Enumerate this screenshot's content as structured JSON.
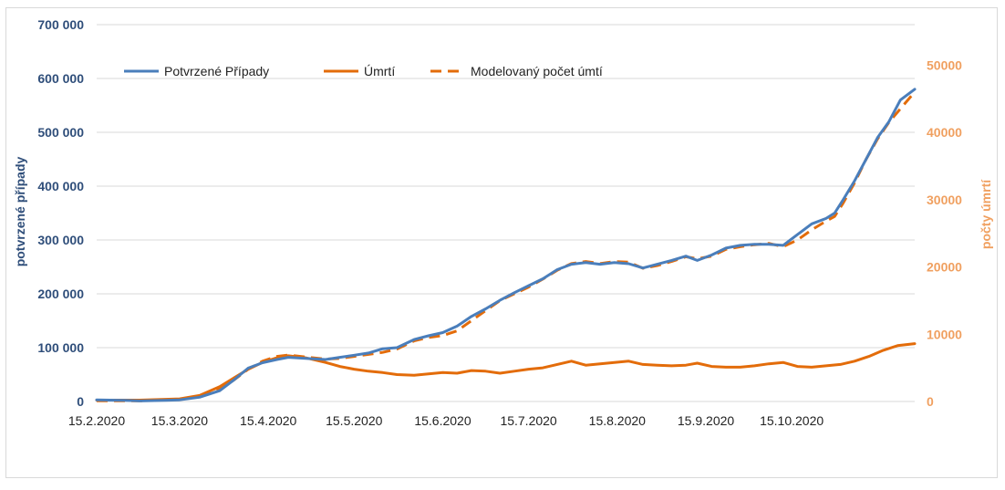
{
  "chart_data": {
    "type": "line",
    "title": "",
    "ylabel_left": "potvrzené případy",
    "ylabel_right": "počty úmrtí",
    "xlabel": "",
    "x_ticks": [
      "15.2.2020",
      "15.3.2020",
      "15.4.2020",
      "15.5.2020",
      "15.6.2020",
      "15.7.2020",
      "15.8.2020",
      "15.9.2020",
      "15.10.2020"
    ],
    "x_tick_dates": [
      "2020-02-15",
      "2020-03-15",
      "2020-04-15",
      "2020-05-15",
      "2020-06-15",
      "2020-07-15",
      "2020-08-15",
      "2020-09-15",
      "2020-10-15"
    ],
    "x_range": [
      "2020-02-15",
      "2020-11-27"
    ],
    "y_left_ticks": [
      "0",
      "100 000",
      "200 000",
      "300 000",
      "400 000",
      "500 000",
      "600 000",
      "700 000"
    ],
    "y_left_range": [
      0,
      700000
    ],
    "y_right_ticks": [
      "0",
      "10000",
      "20000",
      "30000",
      "40000",
      "50000"
    ],
    "y_right_range": [
      0,
      56000
    ],
    "legend_position": "top",
    "grid": "horizontal",
    "colors": {
      "confirmed": "#4a7ebb",
      "deaths": "#e36c0a",
      "left_axis": "#2f4e7a",
      "right_axis": "#f0a060",
      "grid": "#d9d9d9"
    },
    "series": [
      {
        "name": "Potvrzené Případy",
        "axis": "left",
        "style": "solid",
        "points": [
          [
            "2020-02-15",
            3000
          ],
          [
            "2020-02-25",
            2000
          ],
          [
            "2020-03-01",
            1000
          ],
          [
            "2020-03-10",
            2000
          ],
          [
            "2020-03-15",
            3000
          ],
          [
            "2020-03-22",
            8000
          ],
          [
            "2020-03-29",
            20000
          ],
          [
            "2020-04-03",
            40000
          ],
          [
            "2020-04-08",
            62000
          ],
          [
            "2020-04-13",
            72000
          ],
          [
            "2020-04-18",
            78000
          ],
          [
            "2020-04-22",
            82000
          ],
          [
            "2020-04-28",
            80000
          ],
          [
            "2020-05-05",
            78000
          ],
          [
            "2020-05-10",
            82000
          ],
          [
            "2020-05-15",
            86000
          ],
          [
            "2020-05-20",
            90000
          ],
          [
            "2020-05-25",
            98000
          ],
          [
            "2020-05-30",
            100000
          ],
          [
            "2020-06-05",
            115000
          ],
          [
            "2020-06-10",
            122000
          ],
          [
            "2020-06-15",
            128000
          ],
          [
            "2020-06-20",
            140000
          ],
          [
            "2020-06-25",
            158000
          ],
          [
            "2020-06-30",
            172000
          ],
          [
            "2020-07-05",
            188000
          ],
          [
            "2020-07-10",
            202000
          ],
          [
            "2020-07-15",
            215000
          ],
          [
            "2020-07-20",
            228000
          ],
          [
            "2020-07-25",
            245000
          ],
          [
            "2020-07-30",
            255000
          ],
          [
            "2020-08-04",
            258000
          ],
          [
            "2020-08-09",
            255000
          ],
          [
            "2020-08-14",
            258000
          ],
          [
            "2020-08-19",
            256000
          ],
          [
            "2020-08-24",
            248000
          ],
          [
            "2020-08-29",
            255000
          ],
          [
            "2020-09-03",
            262000
          ],
          [
            "2020-09-08",
            270000
          ],
          [
            "2020-09-12",
            262000
          ],
          [
            "2020-09-17",
            272000
          ],
          [
            "2020-09-22",
            285000
          ],
          [
            "2020-09-27",
            290000
          ],
          [
            "2020-10-02",
            292000
          ],
          [
            "2020-10-07",
            292000
          ],
          [
            "2020-10-12",
            290000
          ],
          [
            "2020-10-17",
            310000
          ],
          [
            "2020-10-22",
            330000
          ],
          [
            "2020-10-27",
            340000
          ],
          [
            "2020-10-30",
            350000
          ],
          [
            "2020-11-02",
            375000
          ],
          [
            "2020-11-06",
            410000
          ],
          [
            "2020-11-10",
            450000
          ],
          [
            "2020-11-14",
            490000
          ],
          [
            "2020-11-18",
            520000
          ],
          [
            "2020-11-22",
            560000
          ],
          [
            "2020-11-27",
            580000
          ]
        ]
      },
      {
        "name": "Úmrtí",
        "axis": "right",
        "style": "solid",
        "points": [
          [
            "2020-02-15",
            200
          ],
          [
            "2020-03-01",
            200
          ],
          [
            "2020-03-15",
            400
          ],
          [
            "2020-03-22",
            900
          ],
          [
            "2020-03-29",
            2200
          ],
          [
            "2020-04-03",
            3500
          ],
          [
            "2020-04-08",
            4800
          ],
          [
            "2020-04-13",
            5800
          ],
          [
            "2020-04-18",
            6500
          ],
          [
            "2020-04-22",
            6800
          ],
          [
            "2020-04-28",
            6500
          ],
          [
            "2020-05-05",
            5800
          ],
          [
            "2020-05-10",
            5200
          ],
          [
            "2020-05-15",
            4800
          ],
          [
            "2020-05-20",
            4500
          ],
          [
            "2020-05-25",
            4300
          ],
          [
            "2020-05-30",
            4000
          ],
          [
            "2020-06-05",
            3900
          ],
          [
            "2020-06-10",
            4100
          ],
          [
            "2020-06-15",
            4300
          ],
          [
            "2020-06-20",
            4200
          ],
          [
            "2020-06-25",
            4600
          ],
          [
            "2020-06-30",
            4500
          ],
          [
            "2020-07-05",
            4200
          ],
          [
            "2020-07-10",
            4500
          ],
          [
            "2020-07-15",
            4800
          ],
          [
            "2020-07-20",
            5000
          ],
          [
            "2020-07-25",
            5500
          ],
          [
            "2020-07-30",
            6000
          ],
          [
            "2020-08-04",
            5400
          ],
          [
            "2020-08-09",
            5600
          ],
          [
            "2020-08-14",
            5800
          ],
          [
            "2020-08-19",
            6000
          ],
          [
            "2020-08-24",
            5500
          ],
          [
            "2020-08-29",
            5400
          ],
          [
            "2020-09-03",
            5300
          ],
          [
            "2020-09-08",
            5400
          ],
          [
            "2020-09-12",
            5700
          ],
          [
            "2020-09-17",
            5200
          ],
          [
            "2020-09-22",
            5100
          ],
          [
            "2020-09-27",
            5100
          ],
          [
            "2020-10-02",
            5300
          ],
          [
            "2020-10-07",
            5600
          ],
          [
            "2020-10-12",
            5800
          ],
          [
            "2020-10-17",
            5200
          ],
          [
            "2020-10-22",
            5100
          ],
          [
            "2020-10-27",
            5300
          ],
          [
            "2020-11-01",
            5500
          ],
          [
            "2020-11-06",
            6000
          ],
          [
            "2020-11-11",
            6700
          ],
          [
            "2020-11-16",
            7600
          ],
          [
            "2020-11-21",
            8300
          ],
          [
            "2020-11-27",
            8600
          ]
        ]
      },
      {
        "name": "Modelovaný počet úmtí",
        "axis": "right",
        "style": "dashed",
        "points": [
          [
            "2020-02-15",
            100
          ],
          [
            "2020-03-01",
            100
          ],
          [
            "2020-03-15",
            300
          ],
          [
            "2020-03-22",
            700
          ],
          [
            "2020-03-29",
            1800
          ],
          [
            "2020-04-03",
            3200
          ],
          [
            "2020-04-08",
            4800
          ],
          [
            "2020-04-13",
            6000
          ],
          [
            "2020-04-18",
            6700
          ],
          [
            "2020-04-22",
            6900
          ],
          [
            "2020-04-28",
            6600
          ],
          [
            "2020-05-05",
            6300
          ],
          [
            "2020-05-10",
            6400
          ],
          [
            "2020-05-15",
            6700
          ],
          [
            "2020-05-20",
            7000
          ],
          [
            "2020-05-25",
            7300
          ],
          [
            "2020-05-30",
            7800
          ],
          [
            "2020-06-05",
            9000
          ],
          [
            "2020-06-10",
            9500
          ],
          [
            "2020-06-15",
            9800
          ],
          [
            "2020-06-20",
            10500
          ],
          [
            "2020-06-25",
            12000
          ],
          [
            "2020-06-30",
            13500
          ],
          [
            "2020-07-05",
            15000
          ],
          [
            "2020-07-10",
            16000
          ],
          [
            "2020-07-15",
            17000
          ],
          [
            "2020-07-20",
            18200
          ],
          [
            "2020-07-25",
            19500
          ],
          [
            "2020-07-30",
            20500
          ],
          [
            "2020-08-04",
            20800
          ],
          [
            "2020-08-09",
            20500
          ],
          [
            "2020-08-14",
            20800
          ],
          [
            "2020-08-19",
            20700
          ],
          [
            "2020-08-24",
            19800
          ],
          [
            "2020-08-29",
            20200
          ],
          [
            "2020-09-03",
            20800
          ],
          [
            "2020-09-08",
            21500
          ],
          [
            "2020-09-12",
            21200
          ],
          [
            "2020-09-17",
            21600
          ],
          [
            "2020-09-22",
            22600
          ],
          [
            "2020-09-27",
            23000
          ],
          [
            "2020-10-02",
            23300
          ],
          [
            "2020-10-07",
            23500
          ],
          [
            "2020-10-12",
            23000
          ],
          [
            "2020-10-17",
            24000
          ],
          [
            "2020-10-22",
            25500
          ],
          [
            "2020-10-27",
            26800
          ],
          [
            "2020-10-30",
            27500
          ],
          [
            "2020-11-02",
            29500
          ],
          [
            "2020-11-06",
            32500
          ],
          [
            "2020-11-10",
            36000
          ],
          [
            "2020-11-14",
            39000
          ],
          [
            "2020-11-18",
            41500
          ],
          [
            "2020-11-22",
            43500
          ],
          [
            "2020-11-27",
            46000
          ]
        ]
      }
    ]
  }
}
